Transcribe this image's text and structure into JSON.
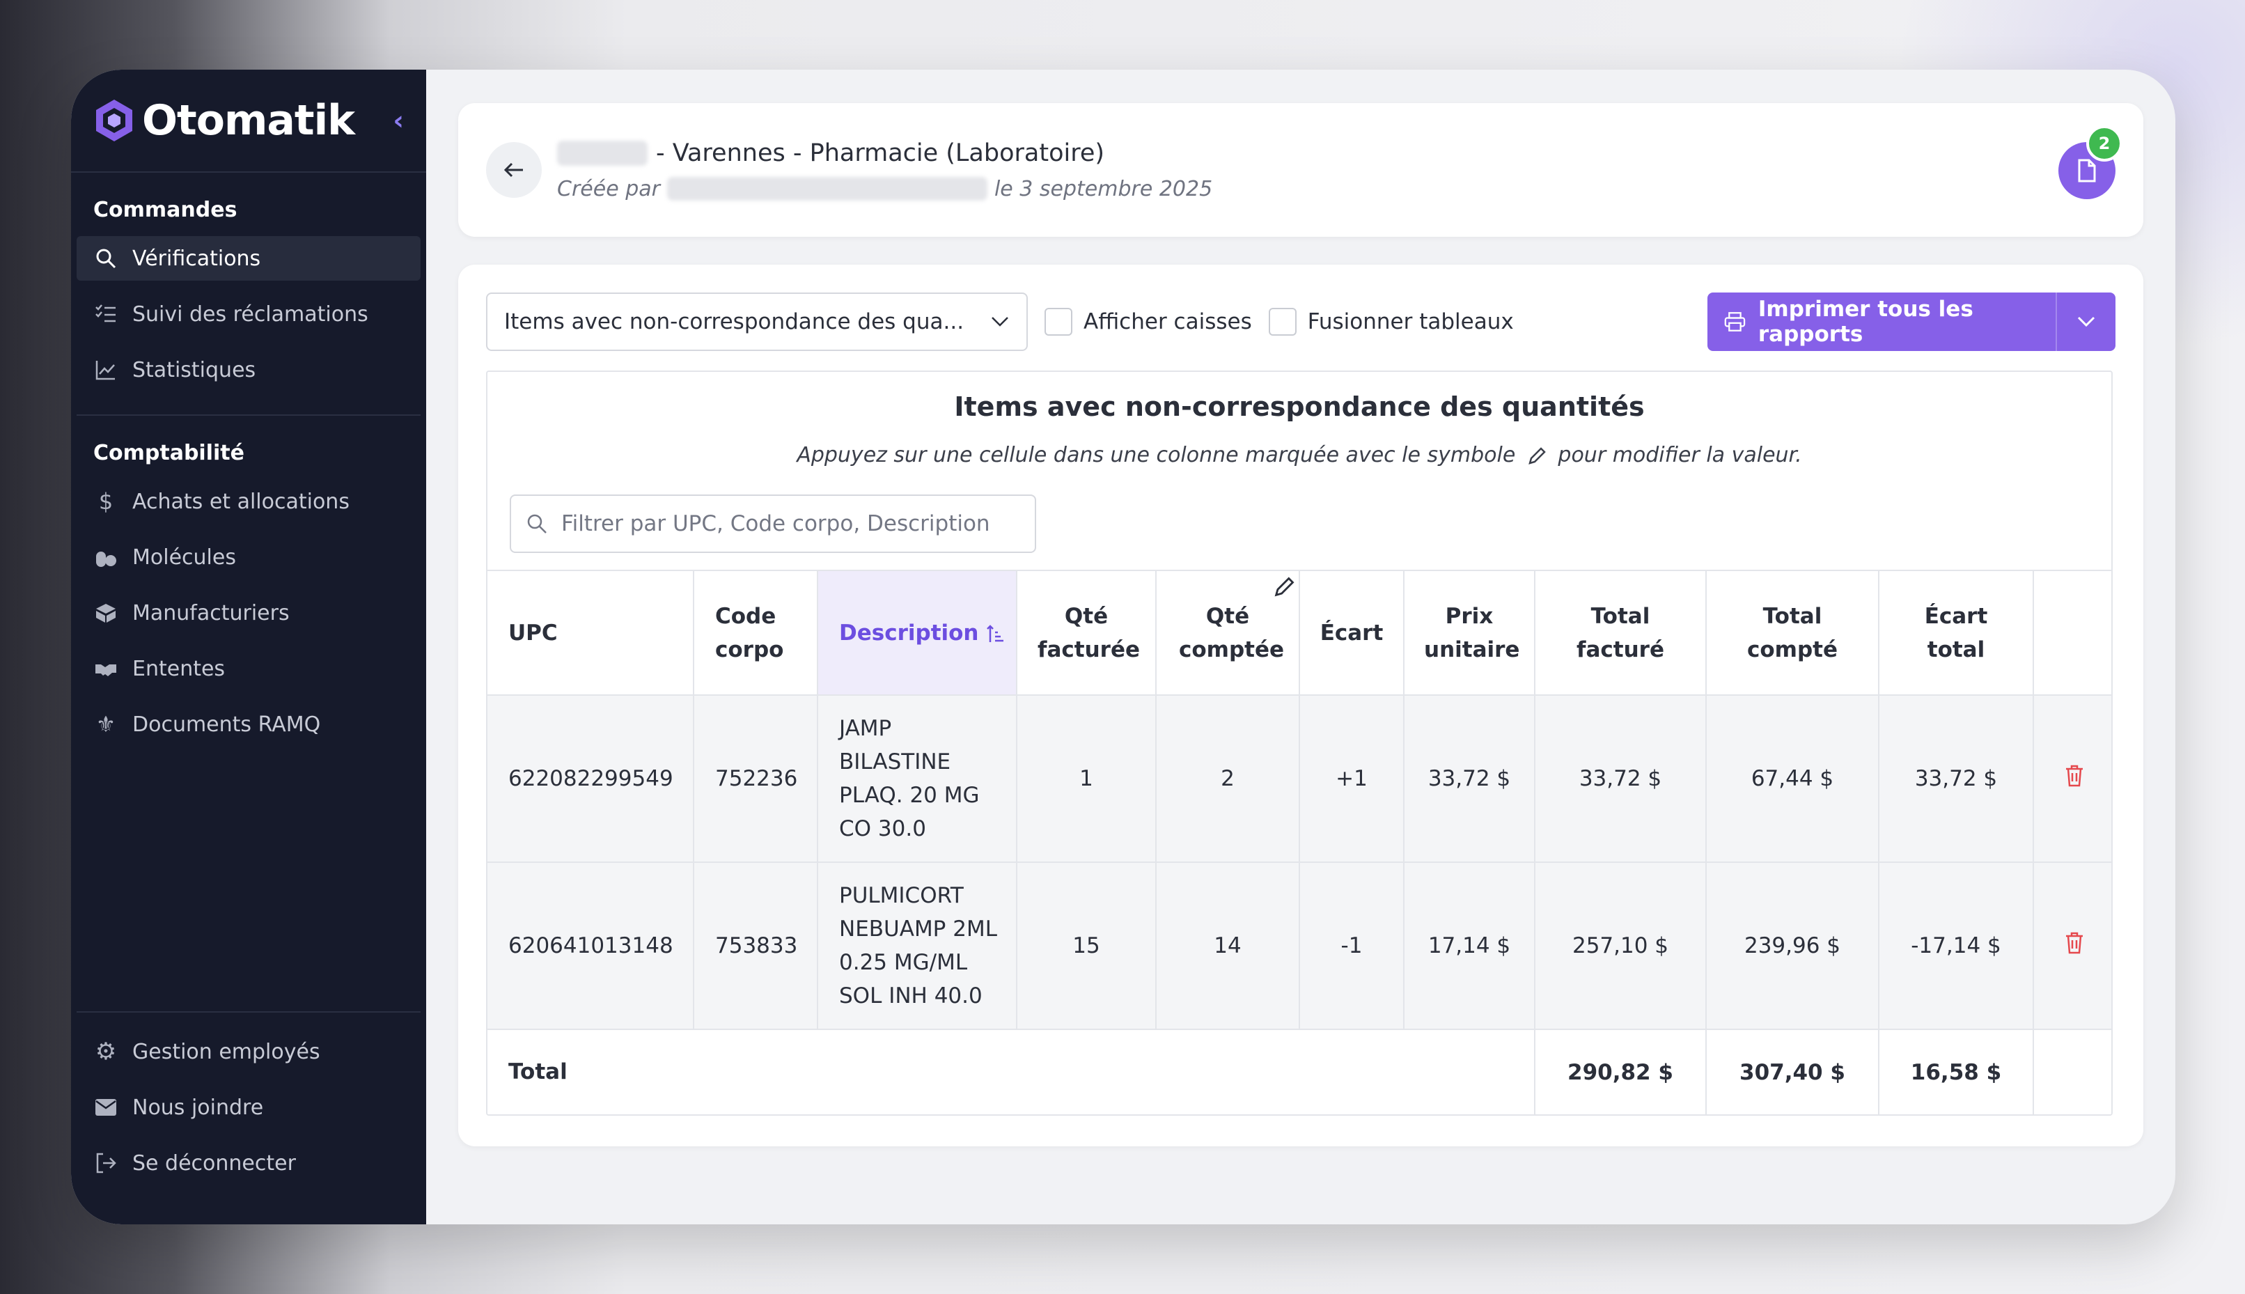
{
  "brand": {
    "name": "Otomatik",
    "accent": "#8660e8"
  },
  "sidebar": {
    "sections": [
      {
        "title": "Commandes",
        "items": [
          {
            "label": "Vérifications",
            "icon": "search-icon"
          },
          {
            "label": "Suivi des réclamations",
            "icon": "list-check-icon"
          },
          {
            "label": "Statistiques",
            "icon": "chart-line-icon"
          }
        ]
      },
      {
        "title": "Comptabilité",
        "items": [
          {
            "label": "Achats et allocations",
            "icon": "dollar-icon"
          },
          {
            "label": "Molécules",
            "icon": "pills-icon"
          },
          {
            "label": "Manufacturiers",
            "icon": "box-icon"
          },
          {
            "label": "Ententes",
            "icon": "handshake-icon"
          },
          {
            "label": "Documents RAMQ",
            "icon": "fleur-de-lis-icon"
          }
        ]
      }
    ],
    "bottom_items": [
      {
        "label": "Gestion employés",
        "icon": "gear-icon"
      },
      {
        "label": "Nous joindre",
        "icon": "envelope-icon"
      },
      {
        "label": "Se déconnecter",
        "icon": "logout-icon"
      }
    ]
  },
  "header": {
    "title_suffix": "- Varennes - Pharmacie (Laboratoire)",
    "created_by_label": "Créée par",
    "created_date": "le 3 septembre 2025",
    "doc_badge_count": "2"
  },
  "toolbar": {
    "report_select_value": "Items avec non-correspondance des qua...",
    "show_cases_label": "Afficher caisses",
    "merge_tables_label": "Fusionner tableaux",
    "print_label": "Imprimer tous les rapports"
  },
  "report": {
    "title": "Items avec non-correspondance des quantités",
    "hint_before": "Appuyez sur une cellule dans une colonne marquée avec le symbole",
    "hint_after": "pour modifier la valeur.",
    "filter_placeholder": "Filtrer par UPC, Code corpo, Description",
    "columns": [
      "UPC",
      "Code corpo",
      "Description",
      "Qté facturée",
      "Qté comptée",
      "Écart",
      "Prix unitaire",
      "Total facturé",
      "Total compté",
      "Écart total"
    ],
    "rows": [
      {
        "upc": "622082299549",
        "code": "752236",
        "desc": [
          "JAMP",
          "BILASTINE",
          "PLAQ. 20 MG",
          "CO 30.0"
        ],
        "qte_fact": "1",
        "qte_compt": "2",
        "ecart": "+1",
        "prix": "33,72 $",
        "total_fact": "33,72 $",
        "total_compt": "67,44 $",
        "ecart_total": "33,72 $"
      },
      {
        "upc": "620641013148",
        "code": "753833",
        "desc": [
          "PULMICORT",
          "NEBUAMP 2ML",
          "0.25 MG/ML",
          "SOL INH 40.0"
        ],
        "qte_fact": "15",
        "qte_compt": "14",
        "ecart": "-1",
        "prix": "17,14 $",
        "total_fact": "257,10 $",
        "total_compt": "239,96 $",
        "ecart_total": "-17,14 $"
      }
    ],
    "total": {
      "label": "Total",
      "total_fact": "290,82 $",
      "total_compt": "307,40 $",
      "ecart_total": "16,58 $"
    }
  }
}
